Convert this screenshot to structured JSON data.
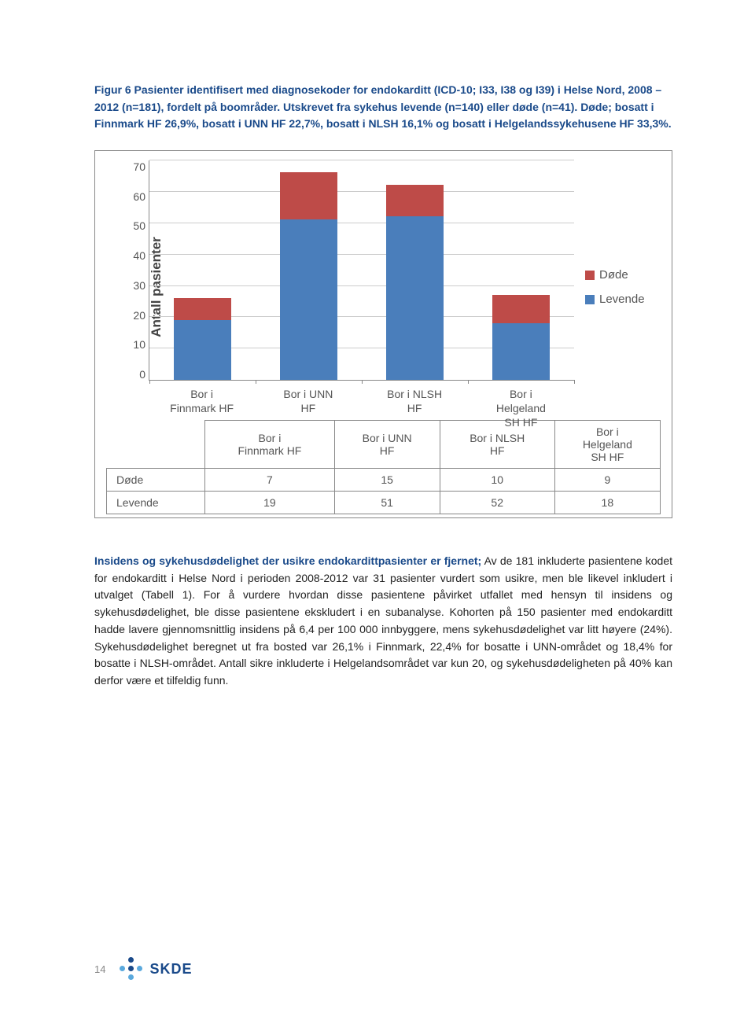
{
  "caption": "Figur 6 Pasienter identifisert med diagnosekoder for endokarditt (ICD-10; I33, I38 og I39) i Helse Nord, 2008 – 2012 (n=181), fordelt på boområder. Utskrevet fra sykehus levende (n=140) eller døde (n=41). Døde; bosatt i Finnmark HF 26,9%, bosatt i UNN HF 22,7%, bosatt i NLSH 16,1% og bosatt i Helgelandssykehusene HF 33,3%.",
  "chart": {
    "type": "stacked-bar",
    "y_label": "Antall pasienter",
    "y_ticks": [
      70,
      60,
      50,
      40,
      30,
      20,
      10,
      0
    ],
    "ylim": [
      0,
      70
    ],
    "categories": [
      "Bor i\nFinnmark HF",
      "Bor i UNN\nHF",
      "Bor i NLSH\nHF",
      "Bor i\nHelgeland\nSH HF"
    ],
    "series": [
      {
        "name": "Levende",
        "color": "#4a7ebb",
        "values": [
          19,
          51,
          52,
          18
        ]
      },
      {
        "name": "Døde",
        "color": "#be4b48",
        "values": [
          7,
          15,
          10,
          9
        ]
      }
    ],
    "background_color": "#ffffff",
    "grid_color": "#cccccc",
    "axis_color": "#888888",
    "bar_width": 0.54,
    "legend": [
      "Døde",
      "Levende"
    ]
  },
  "table": {
    "row_headers": [
      "Døde",
      "Levende"
    ],
    "rows": [
      [
        7,
        15,
        10,
        9
      ],
      [
        19,
        51,
        52,
        18
      ]
    ]
  },
  "body": {
    "lead": "Insidens og sykehusdødelighet der usikre endokardittpasienter er fjernet;",
    "rest": " Av de 181 inkluderte pasientene kodet for endokarditt i Helse Nord i perioden 2008-2012 var 31 pasienter vurdert som usikre, men ble likevel inkludert i utvalget (Tabell 1). For å vurdere hvordan disse pasientene påvirket utfallet med hensyn til insidens og sykehusdødelighet, ble disse pasientene ekskludert i en subanalyse. Kohorten på 150 pasienter med endokarditt hadde lavere gjennomsnittlig insidens på 6,4 per 100 000 innbyggere, mens sykehusdødelighet var litt høyere (24%). Sykehusdødelighet beregnet ut fra bosted var 26,1% i Finnmark, 22,4% for bosatte i UNN-området og 18,4% for bosatte i NLSH-området. Antall sikre inkluderte i Helgelandsområdet var kun 20, og sykehusdødeligheten på 40% kan derfor være et tilfeldig funn."
  },
  "page_number": "14",
  "logo_text": "SKDE",
  "logo_colors": {
    "dark": "#1a4a8a",
    "light": "#5aa9dd"
  }
}
